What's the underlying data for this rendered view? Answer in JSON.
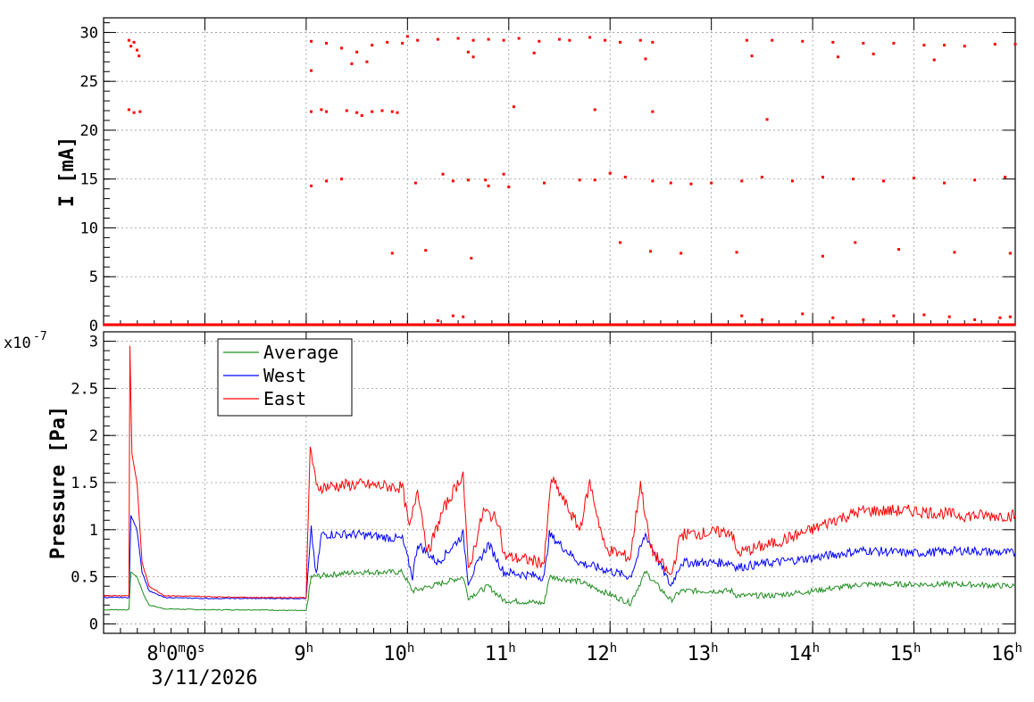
{
  "chart_data": [
    {
      "type": "scatter",
      "ylabel": "I [mA]",
      "ylim": [
        0,
        31.5
      ],
      "yticks": [
        0,
        5,
        10,
        15,
        20,
        25,
        30
      ],
      "ytick_labels": [
        "0",
        "5",
        "10",
        "15",
        "20",
        "25",
        "30"
      ],
      "xlim_hours": [
        7.0,
        16.0
      ],
      "grid": true,
      "marker_color": "#ff0000",
      "series": [
        {
          "points": [
            [
              7.25,
              29.2
            ],
            [
              7.27,
              28.6
            ],
            [
              7.3,
              29.0
            ],
            [
              7.33,
              28.2
            ],
            [
              7.35,
              27.6
            ],
            [
              7.25,
              22.1
            ],
            [
              7.3,
              21.8
            ],
            [
              7.36,
              21.9
            ],
            [
              9.05,
              29.1
            ],
            [
              9.2,
              28.9
            ],
            [
              9.35,
              28.4
            ],
            [
              9.5,
              28.0
            ],
            [
              9.65,
              28.7
            ],
            [
              9.8,
              29.0
            ],
            [
              9.95,
              28.9
            ],
            [
              10.1,
              29.2
            ],
            [
              10.3,
              29.3
            ],
            [
              10.5,
              29.4
            ],
            [
              10.6,
              28.0
            ],
            [
              10.65,
              29.2
            ],
            [
              10.8,
              29.3
            ],
            [
              10.95,
              29.2
            ],
            [
              11.1,
              29.4
            ],
            [
              11.3,
              29.1
            ],
            [
              11.5,
              29.3
            ],
            [
              11.6,
              29.2
            ],
            [
              11.8,
              29.5
            ],
            [
              11.95,
              29.2
            ],
            [
              12.1,
              29.0
            ],
            [
              12.3,
              29.2
            ],
            [
              12.42,
              29.0
            ],
            [
              13.35,
              29.2
            ],
            [
              13.6,
              29.2
            ],
            [
              13.9,
              29.1
            ],
            [
              14.2,
              29.0
            ],
            [
              14.5,
              28.9
            ],
            [
              14.8,
              28.9
            ],
            [
              15.1,
              28.7
            ],
            [
              15.3,
              28.7
            ],
            [
              15.5,
              28.6
            ],
            [
              15.8,
              28.8
            ],
            [
              16.0,
              28.8
            ],
            [
              9.05,
              26.1
            ],
            [
              9.45,
              26.8
            ],
            [
              9.6,
              27.0
            ],
            [
              10.65,
              27.5
            ],
            [
              10.0,
              29.6
            ],
            [
              11.25,
              27.9
            ],
            [
              12.35,
              27.3
            ],
            [
              13.4,
              27.6
            ],
            [
              14.25,
              27.5
            ],
            [
              14.6,
              27.8
            ],
            [
              15.2,
              27.2
            ],
            [
              9.05,
              21.9
            ],
            [
              9.15,
              22.1
            ],
            [
              9.2,
              21.9
            ],
            [
              9.4,
              22.0
            ],
            [
              9.5,
              21.8
            ],
            [
              9.55,
              21.5
            ],
            [
              9.65,
              21.9
            ],
            [
              9.75,
              22.0
            ],
            [
              9.85,
              21.9
            ],
            [
              9.9,
              21.8
            ],
            [
              11.05,
              22.4
            ],
            [
              11.85,
              22.1
            ],
            [
              12.42,
              21.9
            ],
            [
              13.55,
              21.1
            ],
            [
              9.05,
              14.3
            ],
            [
              9.2,
              14.8
            ],
            [
              9.35,
              15.0
            ],
            [
              10.08,
              14.6
            ],
            [
              10.35,
              15.5
            ],
            [
              10.45,
              14.8
            ],
            [
              10.6,
              14.9
            ],
            [
              10.77,
              14.9
            ],
            [
              10.8,
              14.3
            ],
            [
              10.95,
              15.5
            ],
            [
              11.0,
              14.2
            ],
            [
              11.35,
              14.6
            ],
            [
              11.7,
              14.9
            ],
            [
              11.85,
              14.9
            ],
            [
              12.0,
              15.6
            ],
            [
              12.15,
              15.2
            ],
            [
              12.42,
              14.8
            ],
            [
              12.6,
              14.6
            ],
            [
              12.8,
              14.5
            ],
            [
              13.0,
              14.6
            ],
            [
              13.3,
              14.8
            ],
            [
              13.5,
              15.2
            ],
            [
              13.8,
              14.8
            ],
            [
              14.1,
              15.2
            ],
            [
              14.4,
              15.0
            ],
            [
              14.7,
              14.8
            ],
            [
              15.0,
              15.1
            ],
            [
              15.3,
              14.6
            ],
            [
              15.6,
              14.9
            ],
            [
              15.9,
              15.2
            ],
            [
              9.85,
              7.4
            ],
            [
              10.18,
              7.7
            ],
            [
              10.63,
              6.9
            ],
            [
              12.1,
              8.5
            ],
            [
              12.4,
              7.6
            ],
            [
              12.7,
              7.4
            ],
            [
              13.25,
              7.5
            ],
            [
              14.1,
              7.1
            ],
            [
              14.42,
              8.5
            ],
            [
              14.85,
              7.8
            ],
            [
              15.4,
              7.5
            ],
            [
              15.95,
              7.4
            ],
            [
              10.3,
              0.5
            ],
            [
              10.45,
              1.0
            ],
            [
              10.55,
              0.9
            ],
            [
              13.3,
              1.0
            ],
            [
              13.5,
              0.6
            ],
            [
              13.9,
              1.2
            ],
            [
              14.2,
              0.8
            ],
            [
              14.5,
              0.6
            ],
            [
              14.8,
              1.0
            ],
            [
              15.1,
              1.1
            ],
            [
              15.35,
              0.9
            ],
            [
              15.6,
              0.6
            ],
            [
              15.85,
              0.8
            ],
            [
              15.95,
              0.9
            ]
          ]
        }
      ]
    },
    {
      "type": "line",
      "ylabel": "Pressure [Pa]",
      "y_multiplier_label": "x10",
      "y_multiplier_exp": "-7",
      "ylim": [
        -0.1,
        3.1
      ],
      "yticks": [
        0,
        0.5,
        1,
        1.5,
        2,
        2.5,
        3
      ],
      "ytick_labels": [
        "0",
        "0.5",
        "1",
        "1.5",
        "2",
        "2.5",
        "3"
      ],
      "xlim_hours": [
        7.0,
        16.0
      ],
      "grid": true,
      "x_tick_labels": [
        {
          "hour": 8,
          "base": "8",
          "sup": "h",
          "suffix": "0",
          "sup2": "m",
          "suffix2": "0",
          "sup3": "s"
        },
        {
          "hour": 9,
          "base": "9",
          "sup": "h"
        },
        {
          "hour": 10,
          "base": "10",
          "sup": "h"
        },
        {
          "hour": 11,
          "base": "11",
          "sup": "h"
        },
        {
          "hour": 12,
          "base": "12",
          "sup": "h"
        },
        {
          "hour": 13,
          "base": "13",
          "sup": "h"
        },
        {
          "hour": 14,
          "base": "14",
          "sup": "h"
        },
        {
          "hour": 15,
          "base": "15",
          "sup": "h"
        },
        {
          "hour": 16,
          "base": "16",
          "sup": "h"
        }
      ],
      "x_date_label": "3/11/2026",
      "legend_position": "top-left",
      "series": [
        {
          "name": "Average",
          "color": "#1e8c1e",
          "points": [
            [
              7.0,
              0.15
            ],
            [
              7.25,
              0.15
            ],
            [
              7.27,
              0.55
            ],
            [
              7.33,
              0.5
            ],
            [
              7.4,
              0.3
            ],
            [
              7.45,
              0.2
            ],
            [
              7.6,
              0.16
            ],
            [
              8.0,
              0.15
            ],
            [
              8.5,
              0.15
            ],
            [
              9.0,
              0.14
            ],
            [
              9.05,
              0.5
            ],
            [
              9.5,
              0.55
            ],
            [
              9.95,
              0.55
            ],
            [
              10.05,
              0.35
            ],
            [
              10.3,
              0.42
            ],
            [
              10.55,
              0.5
            ],
            [
              10.6,
              0.28
            ],
            [
              10.8,
              0.4
            ],
            [
              10.95,
              0.25
            ],
            [
              11.35,
              0.22
            ],
            [
              11.4,
              0.5
            ],
            [
              11.7,
              0.45
            ],
            [
              12.2,
              0.22
            ],
            [
              12.35,
              0.55
            ],
            [
              12.6,
              0.25
            ],
            [
              12.7,
              0.35
            ],
            [
              13.2,
              0.35
            ],
            [
              13.25,
              0.3
            ],
            [
              13.6,
              0.3
            ],
            [
              14.0,
              0.35
            ],
            [
              14.5,
              0.42
            ],
            [
              15.0,
              0.42
            ],
            [
              15.5,
              0.42
            ],
            [
              16.0,
              0.4
            ]
          ]
        },
        {
          "name": "West",
          "color": "#0000ff",
          "points": [
            [
              7.0,
              0.28
            ],
            [
              7.25,
              0.28
            ],
            [
              7.27,
              1.15
            ],
            [
              7.33,
              1.0
            ],
            [
              7.38,
              0.55
            ],
            [
              7.45,
              0.35
            ],
            [
              7.6,
              0.28
            ],
            [
              8.0,
              0.27
            ],
            [
              8.5,
              0.27
            ],
            [
              9.0,
              0.27
            ],
            [
              9.05,
              1.0
            ],
            [
              9.1,
              0.5
            ],
            [
              9.15,
              0.95
            ],
            [
              9.5,
              0.95
            ],
            [
              9.95,
              0.9
            ],
            [
              10.05,
              0.5
            ],
            [
              10.1,
              0.85
            ],
            [
              10.3,
              0.65
            ],
            [
              10.55,
              0.95
            ],
            [
              10.6,
              0.45
            ],
            [
              10.8,
              0.85
            ],
            [
              10.95,
              0.55
            ],
            [
              11.35,
              0.5
            ],
            [
              11.4,
              0.95
            ],
            [
              11.7,
              0.65
            ],
            [
              12.2,
              0.5
            ],
            [
              12.35,
              0.95
            ],
            [
              12.6,
              0.4
            ],
            [
              12.7,
              0.65
            ],
            [
              13.2,
              0.65
            ],
            [
              13.25,
              0.6
            ],
            [
              13.6,
              0.65
            ],
            [
              14.0,
              0.7
            ],
            [
              14.5,
              0.78
            ],
            [
              15.0,
              0.75
            ],
            [
              15.5,
              0.78
            ],
            [
              16.0,
              0.75
            ]
          ]
        },
        {
          "name": "East",
          "color": "#ff0000",
          "points": [
            [
              7.0,
              0.3
            ],
            [
              7.25,
              0.3
            ],
            [
              7.26,
              2.95
            ],
            [
              7.28,
              1.8
            ],
            [
              7.33,
              1.5
            ],
            [
              7.38,
              0.65
            ],
            [
              7.45,
              0.4
            ],
            [
              7.6,
              0.3
            ],
            [
              8.0,
              0.29
            ],
            [
              8.5,
              0.28
            ],
            [
              9.0,
              0.28
            ],
            [
              9.04,
              1.9
            ],
            [
              9.1,
              1.45
            ],
            [
              9.5,
              1.48
            ],
            [
              9.95,
              1.45
            ],
            [
              10.02,
              1.0
            ],
            [
              10.1,
              1.45
            ],
            [
              10.2,
              0.75
            ],
            [
              10.35,
              1.2
            ],
            [
              10.55,
              1.6
            ],
            [
              10.6,
              0.55
            ],
            [
              10.75,
              1.2
            ],
            [
              10.9,
              1.1
            ],
            [
              10.95,
              0.72
            ],
            [
              11.35,
              0.65
            ],
            [
              11.42,
              1.55
            ],
            [
              11.7,
              1.0
            ],
            [
              11.8,
              1.5
            ],
            [
              11.95,
              0.8
            ],
            [
              12.2,
              0.7
            ],
            [
              12.3,
              1.5
            ],
            [
              12.4,
              0.8
            ],
            [
              12.6,
              0.5
            ],
            [
              12.7,
              0.95
            ],
            [
              13.2,
              0.98
            ],
            [
              13.25,
              0.75
            ],
            [
              13.6,
              0.85
            ],
            [
              14.0,
              1.0
            ],
            [
              14.2,
              1.1
            ],
            [
              14.5,
              1.2
            ],
            [
              15.0,
              1.2
            ],
            [
              15.5,
              1.15
            ],
            [
              16.0,
              1.15
            ]
          ]
        }
      ]
    }
  ]
}
